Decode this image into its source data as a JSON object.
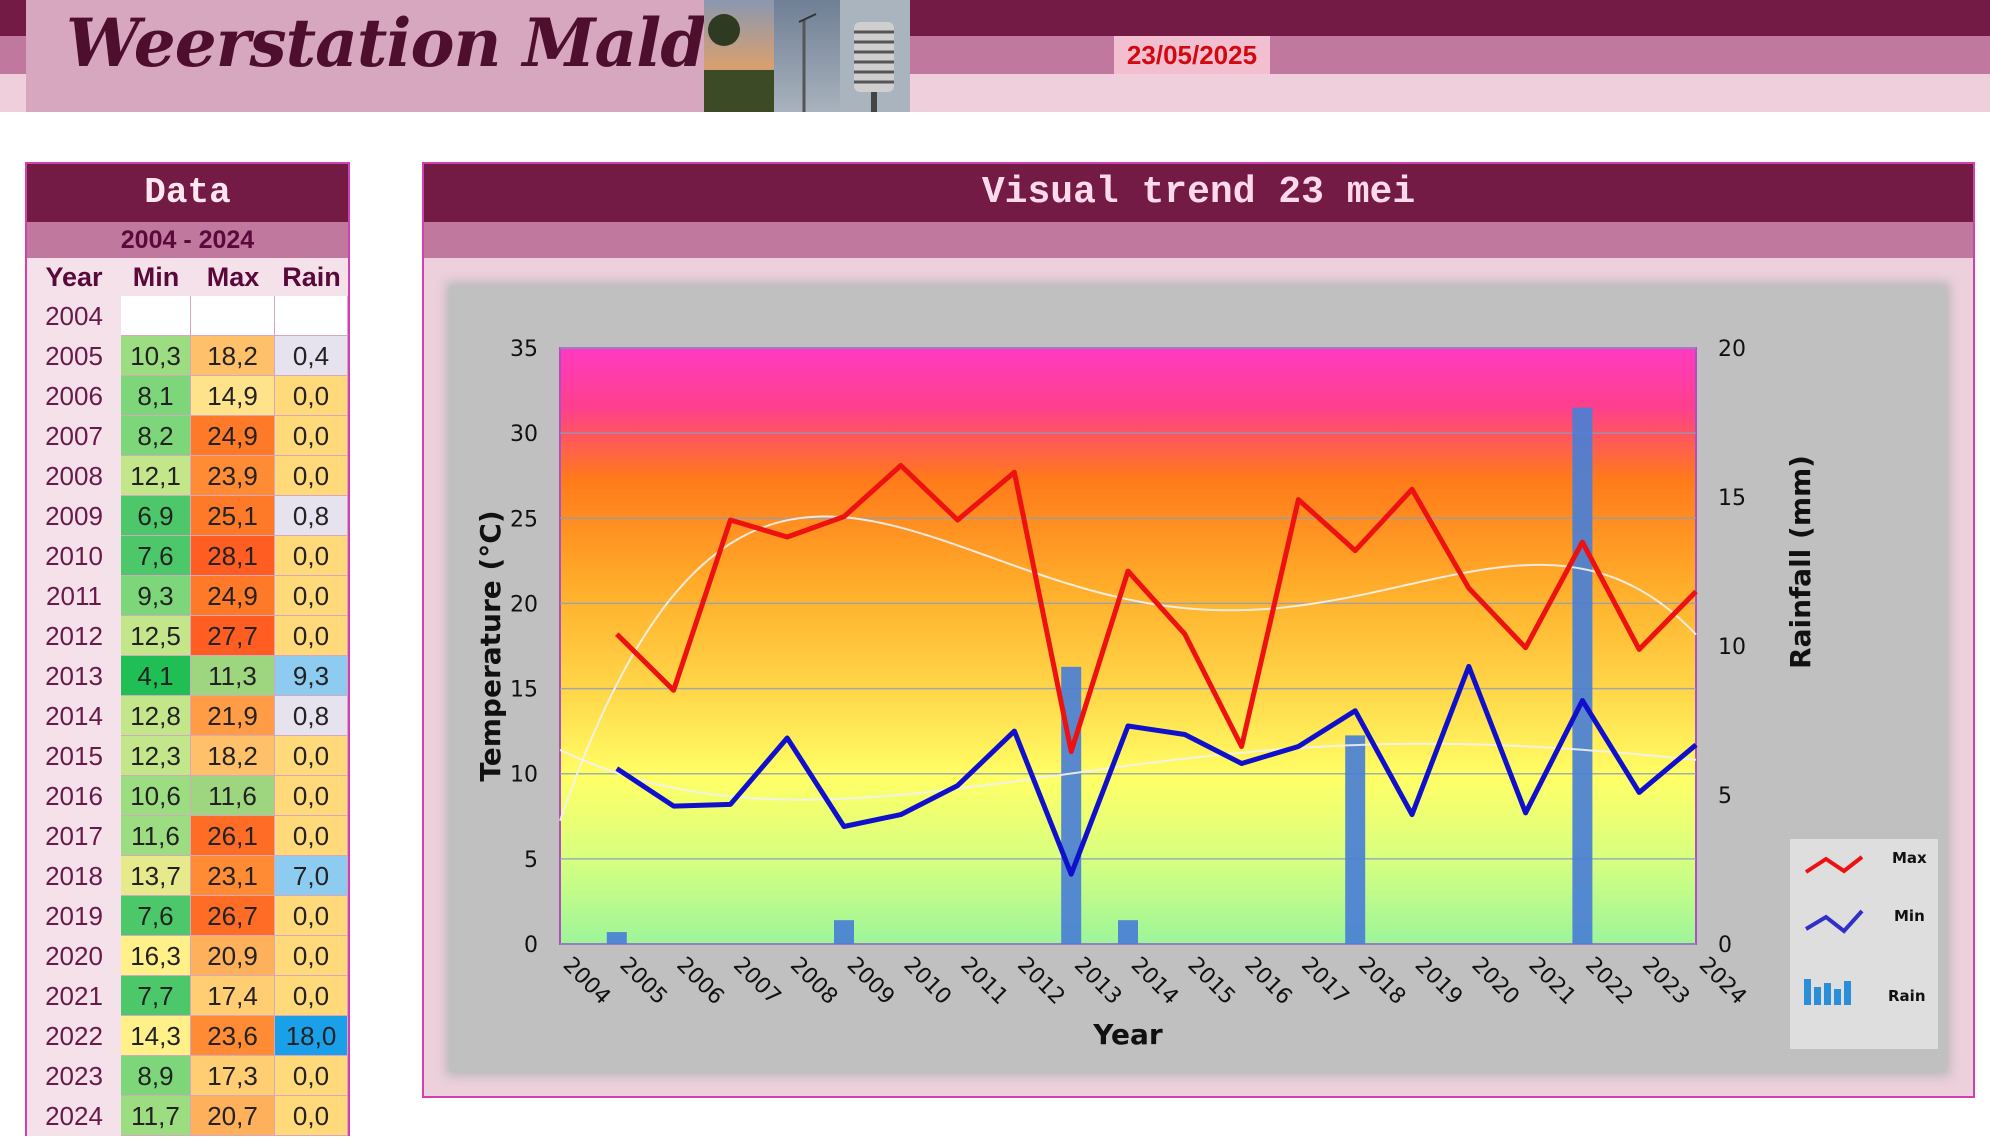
{
  "header": {
    "title": "Weerstation Malderen",
    "date": "23/05/2025"
  },
  "table": {
    "title": "Data",
    "range": "2004 - 2024",
    "headers": [
      "Year",
      "Min",
      "Max",
      "Rain"
    ],
    "rows": [
      {
        "year": "2004",
        "min": "",
        "max": "",
        "rain": ""
      },
      {
        "year": "2005",
        "min": "10,3",
        "max": "18,2",
        "rain": "0,4"
      },
      {
        "year": "2006",
        "min": "8,1",
        "max": "14,9",
        "rain": "0,0"
      },
      {
        "year": "2007",
        "min": "8,2",
        "max": "24,9",
        "rain": "0,0"
      },
      {
        "year": "2008",
        "min": "12,1",
        "max": "23,9",
        "rain": "0,0"
      },
      {
        "year": "2009",
        "min": "6,9",
        "max": "25,1",
        "rain": "0,8"
      },
      {
        "year": "2010",
        "min": "7,6",
        "max": "28,1",
        "rain": "0,0"
      },
      {
        "year": "2011",
        "min": "9,3",
        "max": "24,9",
        "rain": "0,0"
      },
      {
        "year": "2012",
        "min": "12,5",
        "max": "27,7",
        "rain": "0,0"
      },
      {
        "year": "2013",
        "min": "4,1",
        "max": "11,3",
        "rain": "9,3"
      },
      {
        "year": "2014",
        "min": "12,8",
        "max": "21,9",
        "rain": "0,8"
      },
      {
        "year": "2015",
        "min": "12,3",
        "max": "18,2",
        "rain": "0,0"
      },
      {
        "year": "2016",
        "min": "10,6",
        "max": "11,6",
        "rain": "0,0"
      },
      {
        "year": "2017",
        "min": "11,6",
        "max": "26,1",
        "rain": "0,0"
      },
      {
        "year": "2018",
        "min": "13,7",
        "max": "23,1",
        "rain": "7,0"
      },
      {
        "year": "2019",
        "min": "7,6",
        "max": "26,7",
        "rain": "0,0"
      },
      {
        "year": "2020",
        "min": "16,3",
        "max": "20,9",
        "rain": "0,0"
      },
      {
        "year": "2021",
        "min": "7,7",
        "max": "17,4",
        "rain": "0,0"
      },
      {
        "year": "2022",
        "min": "14,3",
        "max": "23,6",
        "rain": "18,0"
      },
      {
        "year": "2023",
        "min": "8,9",
        "max": "17,3",
        "rain": "0,0"
      },
      {
        "year": "2024",
        "min": "11,7",
        "max": "20,7",
        "rain": "0,0"
      }
    ]
  },
  "chart_data": {
    "type": "line",
    "title": "Visual trend 23 mei",
    "xlabel": "Year",
    "ylabel": "Temperature (°C)",
    "y2label": "Rainfall (mm)",
    "ylim": [
      0,
      35
    ],
    "y2lim": [
      0,
      20
    ],
    "yticks": [
      0,
      5,
      10,
      15,
      20,
      25,
      30,
      35
    ],
    "y2ticks": [
      0,
      5,
      10,
      15,
      20
    ],
    "grid": true,
    "legend_position": "bottom-right",
    "x": [
      "2004",
      "2005",
      "2006",
      "2007",
      "2008",
      "2009",
      "2010",
      "2011",
      "2012",
      "2013",
      "2014",
      "2015",
      "2016",
      "2017",
      "2018",
      "2019",
      "2020",
      "2021",
      "2022",
      "2023",
      "2024"
    ],
    "series": [
      {
        "name": "Max",
        "type": "line",
        "axis": "left",
        "color": "#ee1111",
        "values": [
          null,
          18.2,
          14.9,
          24.9,
          23.9,
          25.1,
          28.1,
          24.9,
          27.7,
          11.3,
          21.9,
          18.2,
          11.6,
          26.1,
          23.1,
          26.7,
          20.9,
          17.4,
          23.6,
          17.3,
          20.7
        ]
      },
      {
        "name": "Min",
        "type": "line",
        "axis": "left",
        "color": "#1010cc",
        "values": [
          null,
          10.3,
          8.1,
          8.2,
          12.1,
          6.9,
          7.6,
          9.3,
          12.5,
          4.1,
          12.8,
          12.3,
          10.6,
          11.6,
          13.7,
          7.6,
          16.3,
          7.7,
          14.3,
          8.9,
          11.7
        ]
      },
      {
        "name": "Rain",
        "type": "bar",
        "axis": "right",
        "color": "#4a7fd6",
        "values": [
          null,
          0.4,
          0.0,
          0.0,
          0.0,
          0.8,
          0.0,
          0.0,
          0.0,
          9.3,
          0.8,
          0.0,
          0.0,
          0.0,
          7.0,
          0.0,
          0.0,
          0.0,
          18.0,
          0.0,
          0.0
        ]
      }
    ],
    "trend_color": "#f2f2f2"
  }
}
